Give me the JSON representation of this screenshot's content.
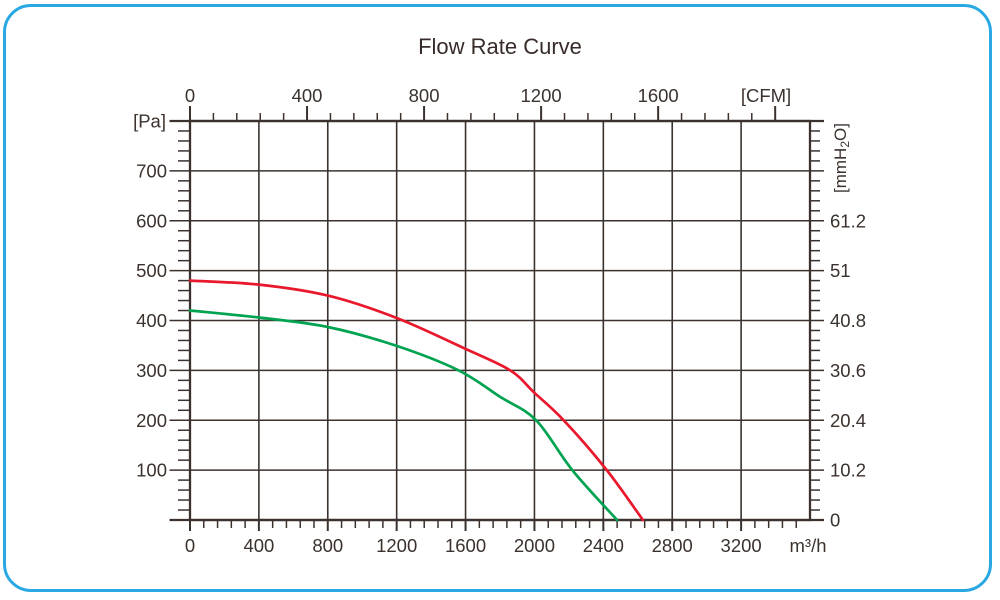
{
  "panel": {
    "border_color": "#29a8e4",
    "background": "#ffffff"
  },
  "chart_data": {
    "type": "line",
    "title": "Flow Rate Curve",
    "grid": true,
    "colors": {
      "axis": "#3b322e",
      "text": "#3b322e",
      "title": "#372c29"
    },
    "x_axis_bottom": {
      "unit": "m³/h",
      "min": 0,
      "max": 3600,
      "major_tick_step": 400,
      "minor_tick_step": 80,
      "last_major_tick": 3200,
      "tick_labels": [
        "0",
        "400",
        "800",
        "1200",
        "1600",
        "2000",
        "2400",
        "2800",
        "3200"
      ]
    },
    "x_axis_top": {
      "unit": "[CFM]",
      "min": 0,
      "max": 2119,
      "major_tick_step": 400,
      "minor_tick_step": 80,
      "last_major_tick": 2000,
      "tick_labels": [
        "0",
        "400",
        "800",
        "1200",
        "1600"
      ]
    },
    "y_axis_left": {
      "unit": "[Pa]",
      "min": 0,
      "max": 800,
      "major_tick_step": 100,
      "minor_tick_step": 20,
      "tick_labels": [
        "100",
        "200",
        "300",
        "400",
        "500",
        "600",
        "700"
      ]
    },
    "y_axis_right": {
      "unit_prefix": "[mmH",
      "unit_subscript": "2",
      "unit_suffix": "O]",
      "minor_tick_step_pa": 20,
      "ticks": [
        {
          "pa": 0,
          "label": "0"
        },
        {
          "pa": 100,
          "label": "10.2"
        },
        {
          "pa": 200,
          "label": "20.4"
        },
        {
          "pa": 300,
          "label": "30.6"
        },
        {
          "pa": 400,
          "label": "40.8"
        },
        {
          "pa": 500,
          "label": "51"
        },
        {
          "pa": 600,
          "label": "61.2"
        }
      ]
    },
    "series": [
      {
        "name": "red-curve",
        "color": "#e8192c",
        "points_m3h_pa": [
          [
            0,
            480
          ],
          [
            400,
            472
          ],
          [
            800,
            450
          ],
          [
            1200,
            405
          ],
          [
            1600,
            343
          ],
          [
            1860,
            300
          ],
          [
            2000,
            255
          ],
          [
            2170,
            200
          ],
          [
            2420,
            100
          ],
          [
            2630,
            0
          ]
        ]
      },
      {
        "name": "green-curve",
        "color": "#00a350",
        "points_m3h_pa": [
          [
            0,
            420
          ],
          [
            400,
            406
          ],
          [
            800,
            387
          ],
          [
            1200,
            349
          ],
          [
            1560,
            300
          ],
          [
            1800,
            247
          ],
          [
            2010,
            200
          ],
          [
            2220,
            100
          ],
          [
            2480,
            0
          ]
        ]
      }
    ]
  }
}
